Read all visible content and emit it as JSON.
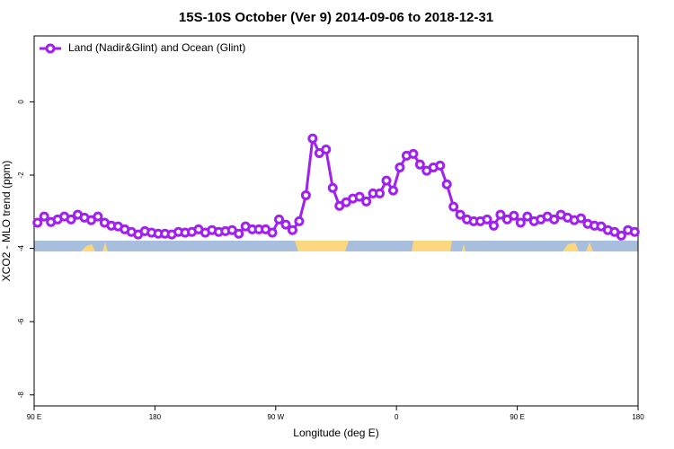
{
  "chart_data": {
    "type": "line",
    "title": "15S-10S October (Ver 9)   2014-09-06 to 2018-12-31",
    "x_label": "Longitude (deg E)",
    "y_label": "XCO2 - MLO trend (ppm)",
    "xlim": [
      90,
      540
    ],
    "ylim": [
      -8.3,
      1.8
    ],
    "xticks": [
      {
        "value": 90,
        "label": "90 E"
      },
      {
        "value": 180,
        "label": "180"
      },
      {
        "value": 270,
        "label": "90 W"
      },
      {
        "value": 360,
        "label": "0"
      },
      {
        "value": 450,
        "label": "90 E"
      },
      {
        "value": 540,
        "label": "180"
      }
    ],
    "yticks": [
      -8,
      -6,
      -4,
      -2,
      0
    ],
    "legend_position": "top-left",
    "x": [
      92.5,
      97.5,
      102.5,
      107.5,
      112.5,
      117.5,
      122.5,
      127.5,
      132.5,
      137.5,
      142.5,
      147.5,
      152.5,
      157.5,
      162.5,
      167.5,
      172.5,
      177.5,
      182.5,
      187.5,
      192.5,
      197.5,
      202.5,
      207.5,
      212.5,
      217.5,
      222.5,
      227.5,
      232.5,
      237.5,
      242.5,
      247.5,
      252.5,
      257.5,
      262.5,
      267.5,
      272.5,
      277.5,
      282.5,
      287.5,
      292.5,
      297.5,
      302.5,
      307.5,
      312.5,
      317.5,
      322.5,
      327.5,
      332.5,
      337.5,
      342.5,
      347.5,
      352.5,
      357.5,
      362.5,
      367.5,
      372.5,
      377.5,
      382.5,
      387.5,
      392.5,
      397.5,
      402.5,
      407.5,
      412.5,
      417.5,
      422.5,
      427.5,
      432.5,
      437.5,
      442.5,
      447.5,
      452.5,
      457.5,
      462.5,
      467.5,
      472.5,
      477.5,
      482.5,
      487.5,
      492.5,
      497.5,
      502.5,
      507.5,
      512.5,
      517.5,
      522.5,
      527.5,
      532.5,
      537.5
    ],
    "series": [
      {
        "name": "Land (Nadir&Glint) and Ocean (Glint)",
        "color": "#a020f0",
        "values": [
          -3.3,
          -3.13,
          -3.28,
          -3.21,
          -3.13,
          -3.21,
          -3.08,
          -3.16,
          -3.23,
          -3.13,
          -3.3,
          -3.38,
          -3.4,
          -3.48,
          -3.55,
          -3.62,
          -3.53,
          -3.57,
          -3.6,
          -3.6,
          -3.62,
          -3.55,
          -3.57,
          -3.55,
          -3.48,
          -3.57,
          -3.5,
          -3.55,
          -3.53,
          -3.5,
          -3.6,
          -3.4,
          -3.48,
          -3.48,
          -3.48,
          -3.57,
          -3.21,
          -3.35,
          -3.5,
          -3.26,
          -2.55,
          -1.0,
          -1.4,
          -1.3,
          -2.35,
          -2.84,
          -2.74,
          -2.64,
          -2.59,
          -2.72,
          -2.5,
          -2.5,
          -2.15,
          -2.42,
          -1.79,
          -1.47,
          -1.42,
          -1.71,
          -1.88,
          -1.79,
          -1.74,
          -2.25,
          -2.86,
          -3.08,
          -3.21,
          -3.26,
          -3.26,
          -3.21,
          -3.38,
          -3.08,
          -3.21,
          -3.11,
          -3.3,
          -3.13,
          -3.26,
          -3.21,
          -3.13,
          -3.21,
          -3.08,
          -3.16,
          -3.23,
          -3.18,
          -3.33,
          -3.38,
          -3.4,
          -3.5,
          -3.55,
          -3.65,
          -3.5,
          -3.55
        ]
      }
    ]
  }
}
